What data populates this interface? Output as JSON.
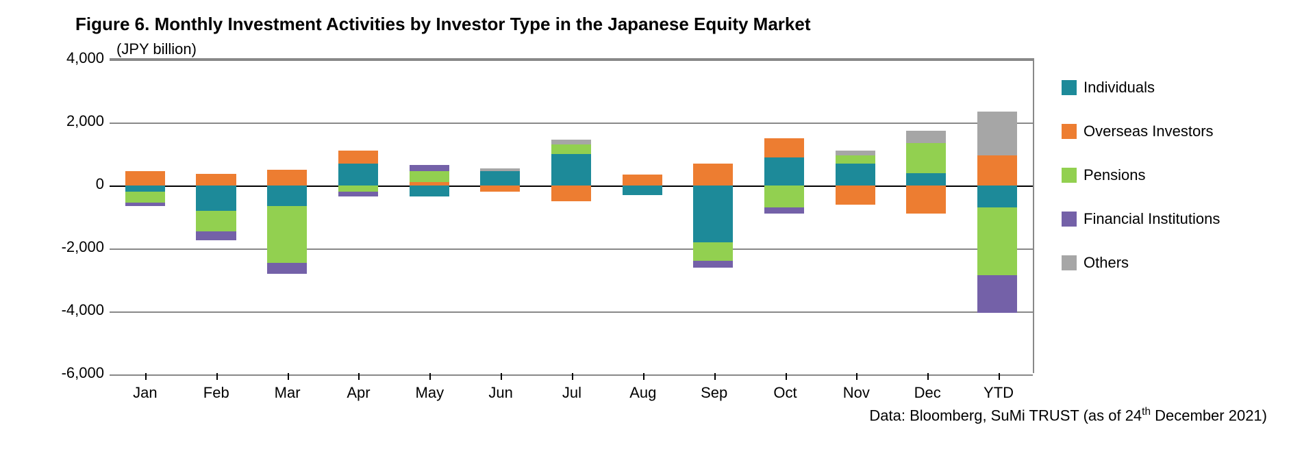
{
  "title": "Figure 6. Monthly Investment Activities by Investor Type in the Japanese Equity Market",
  "unit_label": "(JPY billion)",
  "source": "Data: Bloomberg, SuMi TRUST (as of 24th December 2021)",
  "chart": {
    "type": "stacked-bar",
    "background_color": "#ffffff",
    "grid_color": "#888888",
    "zero_color": "#000000",
    "title_fontsize": 26,
    "label_fontsize": 22,
    "bar_width": 0.56,
    "ylim": [
      -6000,
      4000
    ],
    "yticks": [
      4000,
      2000,
      0,
      -2000,
      -4000,
      -6000
    ],
    "ytick_labels": [
      "4,000",
      "2,000",
      "0",
      "-2,000",
      "-4,000",
      "-6,000"
    ],
    "categories": [
      "Jan",
      "Feb",
      "Mar",
      "Apr",
      "May",
      "Jun",
      "Jul",
      "Aug",
      "Sep",
      "Oct",
      "Nov",
      "Dec",
      "YTD"
    ],
    "series": [
      {
        "name": "Individuals",
        "color": "#1d8a99"
      },
      {
        "name": "Overseas Investors",
        "color": "#ed7d31"
      },
      {
        "name": "Pensions",
        "color": "#92d050"
      },
      {
        "name": "Financial Institutions",
        "color": "#7461a8"
      },
      {
        "name": "Others",
        "color": "#a6a6a6"
      }
    ],
    "data": [
      {
        "Individuals": -200,
        "Overseas Investors": 450,
        "Pensions": -350,
        "Financial Institutions": -100,
        "Others": 0
      },
      {
        "Individuals": -800,
        "Overseas Investors": 380,
        "Pensions": -650,
        "Financial Institutions": -300,
        "Others": 0
      },
      {
        "Individuals": -650,
        "Overseas Investors": 500,
        "Pensions": -1800,
        "Financial Institutions": -350,
        "Others": 0
      },
      {
        "Individuals": 700,
        "Overseas Investors": 400,
        "Pensions": -200,
        "Financial Institutions": -150,
        "Others": 0
      },
      {
        "Individuals": -350,
        "Overseas Investors": 100,
        "Pensions": 350,
        "Financial Institutions": 200,
        "Others": 0
      },
      {
        "Individuals": 450,
        "Overseas Investors": -200,
        "Pensions": 0,
        "Financial Institutions": 0,
        "Others": 100
      },
      {
        "Individuals": 1000,
        "Overseas Investors": -500,
        "Pensions": 300,
        "Financial Institutions": 0,
        "Others": 150
      },
      {
        "Individuals": -300,
        "Overseas Investors": 350,
        "Pensions": 0,
        "Financial Institutions": 0,
        "Others": 0
      },
      {
        "Individuals": -1800,
        "Overseas Investors": 700,
        "Pensions": -600,
        "Financial Institutions": -200,
        "Others": 0
      },
      {
        "Individuals": 900,
        "Overseas Investors": 600,
        "Pensions": -700,
        "Financial Institutions": -200,
        "Others": 0
      },
      {
        "Individuals": 700,
        "Overseas Investors": -600,
        "Pensions": 250,
        "Financial Institutions": 0,
        "Others": 150
      },
      {
        "Individuals": 400,
        "Overseas Investors": -900,
        "Pensions": 950,
        "Financial Institutions": 0,
        "Others": 400
      },
      {
        "Individuals": -700,
        "Overseas Investors": 950,
        "Pensions": -2150,
        "Financial Institutions": -1200,
        "Others": 1400
      }
    ]
  }
}
